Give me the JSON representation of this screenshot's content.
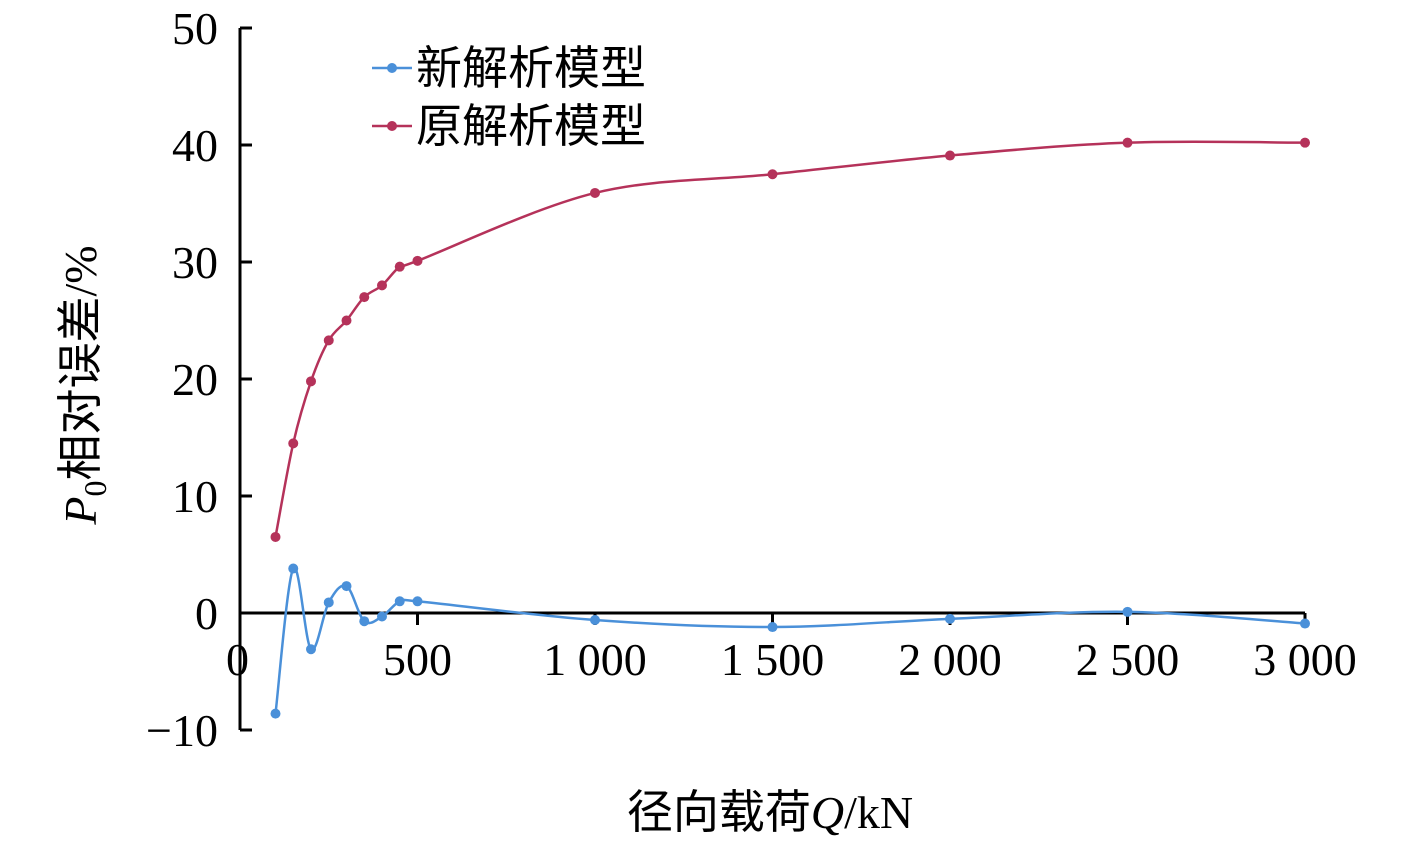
{
  "chart_data": {
    "type": "line",
    "xlabel": {
      "prefix": "径向载荷",
      "var": "Q",
      "suffix": "/kN"
    },
    "ylabel": {
      "var": "P",
      "sub": "0",
      "suffix": "相对误差/%"
    },
    "xlim": [
      0,
      3000
    ],
    "ylim": [
      -10,
      50
    ],
    "x_ticks": [
      0,
      500,
      1000,
      1500,
      2000,
      2500,
      3000
    ],
    "x_tick_labels": [
      "0",
      "500",
      "1 000",
      "1 500",
      "2 000",
      "2 500",
      "3 000"
    ],
    "y_ticks": [
      -10,
      0,
      10,
      20,
      30,
      40,
      50
    ],
    "y_tick_labels": [
      "−10",
      "0",
      "10",
      "20",
      "30",
      "40",
      "50"
    ],
    "grid": false,
    "legend": "top-left",
    "series": [
      {
        "name": "新解析模型",
        "color": "#4a90d9",
        "x": [
          100,
          150,
          200,
          250,
          300,
          350,
          400,
          450,
          500,
          1000,
          1500,
          2000,
          2500,
          3000
        ],
        "y": [
          -8.6,
          3.8,
          -3.1,
          0.9,
          2.3,
          -0.7,
          -0.3,
          1.0,
          1.0,
          -0.6,
          -1.2,
          -0.5,
          0.1,
          -0.9
        ]
      },
      {
        "name": "原解析模型",
        "color": "#b5325a",
        "x": [
          100,
          150,
          200,
          250,
          300,
          350,
          400,
          450,
          500,
          1000,
          1500,
          2000,
          2500,
          3000
        ],
        "y": [
          6.5,
          14.5,
          19.8,
          23.3,
          25.0,
          27.0,
          28.0,
          29.6,
          30.1,
          35.9,
          37.5,
          39.1,
          40.2,
          40.2
        ]
      }
    ]
  }
}
